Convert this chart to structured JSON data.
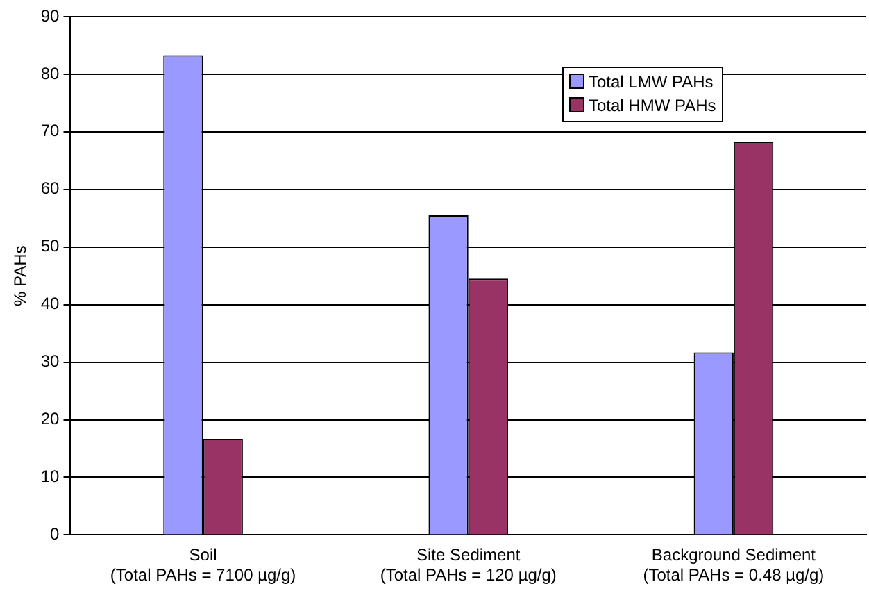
{
  "chart_data": {
    "type": "bar",
    "ylabel": "% PAHs",
    "categories": [
      "Soil\n(Total PAHs = 7100 µg/g)",
      "Site Sediment\n(Total PAHs = 120 µg/g)",
      "Background Sediment\n(Total PAHs = 0.48 µg/g)"
    ],
    "series": [
      {
        "name": "Total LMW PAHs",
        "color": "#9999ff",
        "values": [
          83.3,
          55.5,
          31.7
        ]
      },
      {
        "name": "Total HMW PAHs",
        "color": "#993366",
        "values": [
          16.7,
          44.5,
          68.3
        ]
      }
    ],
    "ylim": [
      0,
      90
    ],
    "yticks": [
      0,
      10,
      20,
      30,
      40,
      50,
      60,
      70,
      80,
      90
    ],
    "grid": "y",
    "legend": "top right"
  }
}
